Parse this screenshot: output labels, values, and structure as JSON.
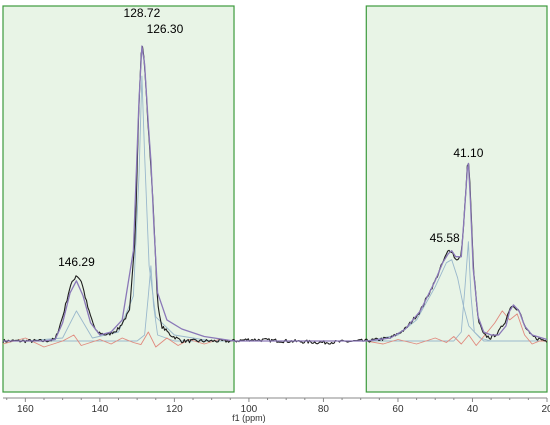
{
  "chart_data": {
    "type": "line",
    "xlabel": "f1 (ppm)",
    "xlim": [
      166,
      20
    ],
    "x_reversed": true,
    "ylim": [
      -0.12,
      1.0
    ],
    "grid": false,
    "x_ticks": [
      160,
      140,
      120,
      100,
      80,
      60,
      40,
      20
    ],
    "x_tick_labels": [
      "160",
      "140",
      "120",
      "100",
      "80",
      "60",
      "40",
      "20"
    ],
    "highlight_regions": [
      {
        "from": 166,
        "to": 104,
        "color": "#e8f4e6"
      },
      {
        "from": 68.5,
        "to": 20,
        "color": "#e8f4e6"
      }
    ],
    "peak_labels": [
      {
        "x": 128.72,
        "text": "128.72"
      },
      {
        "x": 126.3,
        "text": "126.30"
      },
      {
        "x": 146.29,
        "text": "146.29"
      },
      {
        "x": 41.1,
        "text": "41.10"
      },
      {
        "x": 45.58,
        "text": "45.58"
      }
    ],
    "series": [
      {
        "role": "fit-component",
        "color": "#9ab8cc",
        "points": [
          [
            166,
            0
          ],
          [
            160,
            0
          ],
          [
            150,
            0.01
          ],
          [
            146.3,
            0.1
          ],
          [
            142,
            0.01
          ],
          [
            135,
            0.03
          ],
          [
            131,
            0.15
          ],
          [
            129.5,
            0.55
          ],
          [
            128.72,
            0.88
          ],
          [
            128,
            0.62
          ],
          [
            126.8,
            0.25
          ],
          [
            125,
            0.08
          ],
          [
            120,
            0.02
          ],
          [
            110,
            0
          ],
          [
            104,
            0
          ]
        ]
      },
      {
        "role": "fit-component",
        "color": "#9ab8cc",
        "points": [
          [
            166,
            0
          ],
          [
            130,
            0
          ],
          [
            128,
            0.02
          ],
          [
            127,
            0.15
          ],
          [
            126.3,
            0.25
          ],
          [
            125.6,
            0.12
          ],
          [
            124.5,
            0.02
          ],
          [
            120,
            0
          ],
          [
            104,
            0
          ]
        ]
      },
      {
        "role": "fit-component",
        "color": "#9ab8cc",
        "points": [
          [
            68.5,
            0
          ],
          [
            60,
            0.02
          ],
          [
            55,
            0.07
          ],
          [
            50,
            0.18
          ],
          [
            47,
            0.26
          ],
          [
            45.58,
            0.27
          ],
          [
            44,
            0.21
          ],
          [
            42.5,
            0.12
          ],
          [
            41,
            0.05
          ],
          [
            38,
            0.01
          ],
          [
            35,
            0
          ],
          [
            20,
            0
          ]
        ]
      },
      {
        "role": "fit-component",
        "color": "#9ab8cc",
        "points": [
          [
            68.5,
            0
          ],
          [
            45,
            0
          ],
          [
            43,
            0.03
          ],
          [
            42,
            0.18
          ],
          [
            41.1,
            0.33
          ],
          [
            40.4,
            0.15
          ],
          [
            39.5,
            0.03
          ],
          [
            37,
            0
          ],
          [
            20,
            0
          ]
        ]
      },
      {
        "role": "residual",
        "color": "#e08a7e",
        "points": [
          [
            166,
            -0.01
          ],
          [
            160,
            0.01
          ],
          [
            155,
            -0.02
          ],
          [
            150,
            0
          ],
          [
            147,
            0.02
          ],
          [
            145,
            -0.015
          ],
          [
            140,
            0.005
          ],
          [
            137,
            -0.01
          ],
          [
            134,
            0.01
          ],
          [
            131,
            -0.005
          ],
          [
            129,
            -0.012
          ],
          [
            127,
            0.03
          ],
          [
            125,
            -0.02
          ],
          [
            122,
            0.01
          ],
          [
            119,
            -0.015
          ],
          [
            116,
            0.005
          ],
          [
            112,
            -0.01
          ],
          [
            108,
            0.005
          ],
          [
            104,
            0
          ],
          [
            68.5,
            0
          ],
          [
            64,
            -0.01
          ],
          [
            60,
            0.005
          ],
          [
            55,
            -0.01
          ],
          [
            50,
            0.01
          ],
          [
            47,
            -0.005
          ],
          [
            45,
            0.015
          ],
          [
            43,
            -0.01
          ],
          [
            41,
            0.02
          ],
          [
            39,
            -0.015
          ],
          [
            36,
            0.03
          ],
          [
            34,
            0.06
          ],
          [
            32,
            0.1
          ],
          [
            30,
            0.07
          ],
          [
            28,
            0.09
          ],
          [
            26,
            0.02
          ],
          [
            24,
            -0.01
          ],
          [
            22,
            0
          ],
          [
            20,
            0
          ]
        ]
      },
      {
        "role": "spectrum",
        "color": "#1e1e1e",
        "noise": 0.006,
        "points": [
          [
            166,
            0
          ],
          [
            155,
            0
          ],
          [
            152,
            0.005
          ],
          [
            150,
            0.08
          ],
          [
            148,
            0.18
          ],
          [
            146.3,
            0.22
          ],
          [
            145,
            0.2
          ],
          [
            143,
            0.1
          ],
          [
            141,
            0.03
          ],
          [
            138,
            0.02
          ],
          [
            135,
            0.04
          ],
          [
            132,
            0.1
          ],
          [
            130.5,
            0.35
          ],
          [
            129.5,
            0.8
          ],
          [
            128.72,
            1.0
          ],
          [
            128,
            0.92
          ],
          [
            127,
            0.7
          ],
          [
            126.3,
            0.58
          ],
          [
            125.5,
            0.4
          ],
          [
            124.5,
            0.12
          ],
          [
            123.5,
            0.05
          ],
          [
            121,
            0.02
          ],
          [
            118,
            0
          ],
          [
            104,
            0
          ],
          [
            100,
            0.005
          ],
          [
            80,
            -0.005
          ],
          [
            70,
            0
          ],
          [
            68.5,
            0
          ],
          [
            62,
            0.01
          ],
          [
            58,
            0.04
          ],
          [
            54,
            0.1
          ],
          [
            50,
            0.2
          ],
          [
            48,
            0.26
          ],
          [
            46.5,
            0.3
          ],
          [
            45.58,
            0.3
          ],
          [
            44.5,
            0.27
          ],
          [
            43,
            0.28
          ],
          [
            42.2,
            0.42
          ],
          [
            41.4,
            0.58
          ],
          [
            41.1,
            0.6
          ],
          [
            40.6,
            0.5
          ],
          [
            39.8,
            0.25
          ],
          [
            38.5,
            0.07
          ],
          [
            37,
            0.02
          ],
          [
            35,
            0.01
          ],
          [
            33,
            0.03
          ],
          [
            31,
            0.07
          ],
          [
            30,
            0.11
          ],
          [
            29,
            0.12
          ],
          [
            27.5,
            0.1
          ],
          [
            26,
            0.05
          ],
          [
            24.5,
            0.02
          ],
          [
            23,
            0.01
          ],
          [
            20,
            0
          ]
        ]
      },
      {
        "role": "fit",
        "color": "#8a78b8",
        "points": [
          [
            166,
            0
          ],
          [
            155,
            0
          ],
          [
            152,
            0.005
          ],
          [
            150,
            0.06
          ],
          [
            148,
            0.16
          ],
          [
            146.3,
            0.2
          ],
          [
            144.5,
            0.15
          ],
          [
            142.5,
            0.06
          ],
          [
            140,
            0.02
          ],
          [
            137,
            0.03
          ],
          [
            134,
            0.07
          ],
          [
            131,
            0.3
          ],
          [
            129.5,
            0.8
          ],
          [
            128.72,
            0.98
          ],
          [
            128,
            0.92
          ],
          [
            127,
            0.72
          ],
          [
            126.3,
            0.6
          ],
          [
            125.5,
            0.38
          ],
          [
            124.5,
            0.16
          ],
          [
            122,
            0.07
          ],
          [
            118,
            0.04
          ],
          [
            112,
            0.015
          ],
          [
            104,
            0
          ],
          [
            68.5,
            0
          ],
          [
            62,
            0.01
          ],
          [
            58,
            0.04
          ],
          [
            54,
            0.1
          ],
          [
            50,
            0.2
          ],
          [
            48,
            0.26
          ],
          [
            46.5,
            0.29
          ],
          [
            45.58,
            0.3
          ],
          [
            44.5,
            0.28
          ],
          [
            43,
            0.28
          ],
          [
            42.2,
            0.42
          ],
          [
            41.4,
            0.57
          ],
          [
            41.1,
            0.59
          ],
          [
            40.6,
            0.48
          ],
          [
            39.8,
            0.24
          ],
          [
            38.5,
            0.08
          ],
          [
            37,
            0.03
          ],
          [
            35,
            0.02
          ],
          [
            33,
            0.02
          ],
          [
            31,
            0.05
          ],
          [
            30,
            0.1
          ],
          [
            29,
            0.12
          ],
          [
            27.5,
            0.1
          ],
          [
            26,
            0.05
          ],
          [
            24,
            0.02
          ],
          [
            20,
            0.005
          ]
        ]
      }
    ]
  }
}
